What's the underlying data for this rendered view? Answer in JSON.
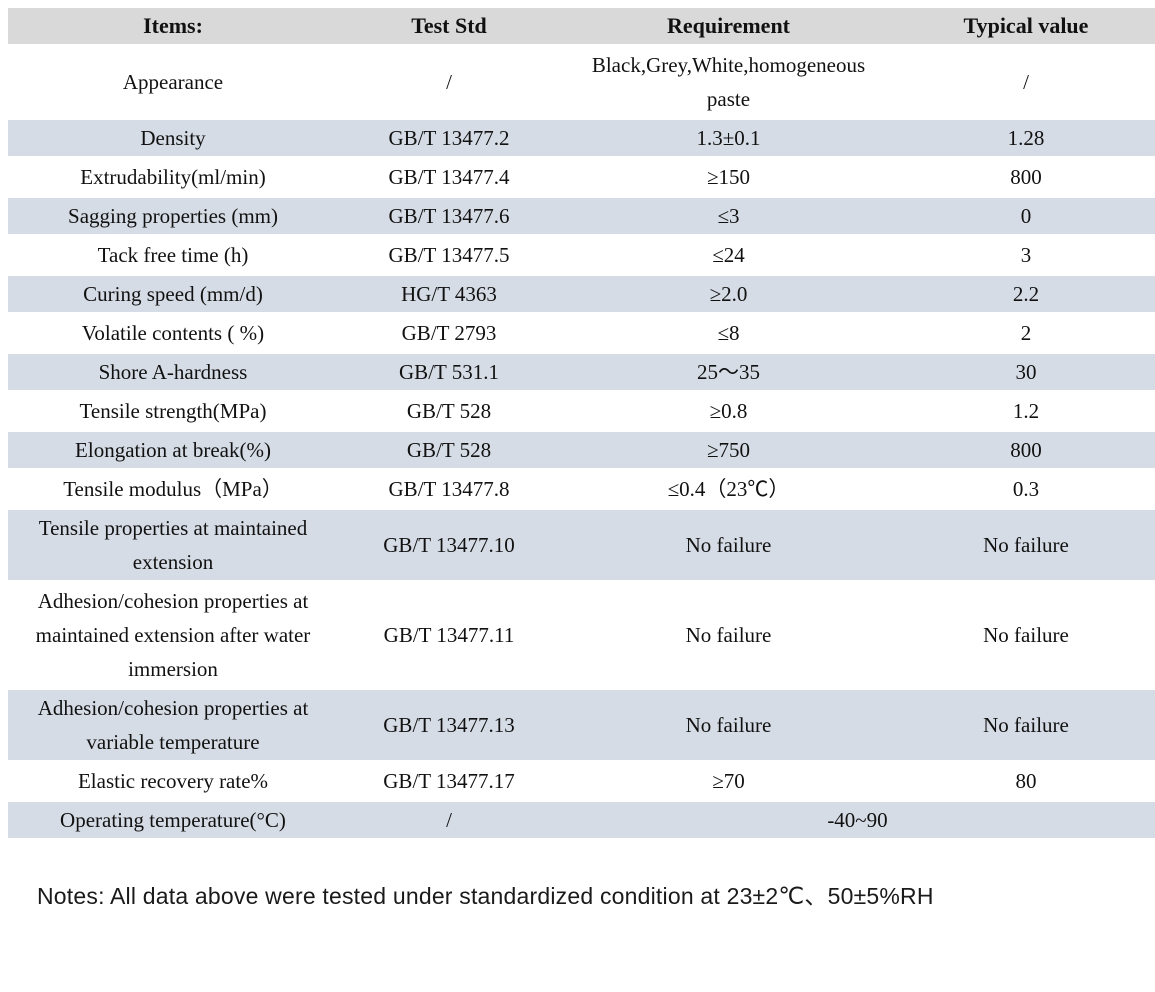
{
  "table": {
    "columns": [
      {
        "label": "Items:"
      },
      {
        "label": "Test Std"
      },
      {
        "label": "Requirement"
      },
      {
        "label": "Typical value"
      }
    ],
    "rows": [
      {
        "item": "Appearance",
        "test_std": "/",
        "requirement": "Black,Grey,White,homogeneous paste",
        "typical_value": "/",
        "shaded": false,
        "merged": false
      },
      {
        "item": "Density",
        "test_std": "GB/T 13477.2",
        "requirement": "1.3±0.1",
        "typical_value": "1.28",
        "shaded": true,
        "merged": false
      },
      {
        "item": "Extrudability(ml/min)",
        "test_std": "GB/T 13477.4",
        "requirement": "≥150",
        "typical_value": "800",
        "shaded": false,
        "merged": false
      },
      {
        "item": "Sagging properties (mm)",
        "test_std": "GB/T 13477.6",
        "requirement": "≤3",
        "typical_value": "0",
        "shaded": true,
        "merged": false
      },
      {
        "item": "Tack free time (h)",
        "test_std": "GB/T 13477.5",
        "requirement": "≤24",
        "typical_value": "3",
        "shaded": false,
        "merged": false
      },
      {
        "item": "Curing speed (mm/d)",
        "test_std": "HG/T 4363",
        "requirement": "≥2.0",
        "typical_value": "2.2",
        "shaded": true,
        "merged": false
      },
      {
        "item": "Volatile contents ( %)",
        "test_std": "GB/T 2793",
        "requirement": "≤8",
        "typical_value": "2",
        "shaded": false,
        "merged": false
      },
      {
        "item": "Shore A-hardness",
        "test_std": "GB/T 531.1",
        "requirement": "25～35",
        "typical_value": "30",
        "shaded": true,
        "merged": false
      },
      {
        "item": "Tensile strength(MPa)",
        "test_std": "GB/T 528",
        "requirement": "≥0.8",
        "typical_value": "1.2",
        "shaded": false,
        "merged": false
      },
      {
        "item": "Elongation at break(%)",
        "test_std": "GB/T 528",
        "requirement": "≥750",
        "typical_value": "800",
        "shaded": true,
        "merged": false
      },
      {
        "item": "Tensile modulus（MPa）",
        "test_std": "GB/T 13477.8",
        "requirement": "≤0.4（23℃）",
        "typical_value": "0.3",
        "shaded": false,
        "merged": false
      },
      {
        "item": "Tensile properties at maintained extension",
        "test_std": "GB/T 13477.10",
        "requirement": "No failure",
        "typical_value": "No failure",
        "shaded": true,
        "merged": false
      },
      {
        "item": "Adhesion/cohesion properties at maintained extension after water immersion",
        "test_std": "GB/T 13477.11",
        "requirement": "No failure",
        "typical_value": "No failure",
        "shaded": false,
        "merged": false
      },
      {
        "item": "Adhesion/cohesion properties at variable temperature",
        "test_std": "GB/T 13477.13",
        "requirement": "No failure",
        "typical_value": "No failure",
        "shaded": true,
        "merged": false
      },
      {
        "item": "Elastic recovery rate%",
        "test_std": "GB/T 13477.17",
        "requirement": "≥70",
        "typical_value": "80",
        "shaded": false,
        "merged": false
      },
      {
        "item": "Operating temperature(°C)",
        "test_std": "/",
        "requirement": "-40~90",
        "typical_value": null,
        "shaded": true,
        "merged": true
      }
    ]
  },
  "notes": "Notes: All data above were tested under standardized condition at 23±2℃、50±5%RH",
  "colors": {
    "header_bg": "#d9d9d9",
    "row_shaded_bg": "#d6dce5",
    "text": "#111111"
  }
}
